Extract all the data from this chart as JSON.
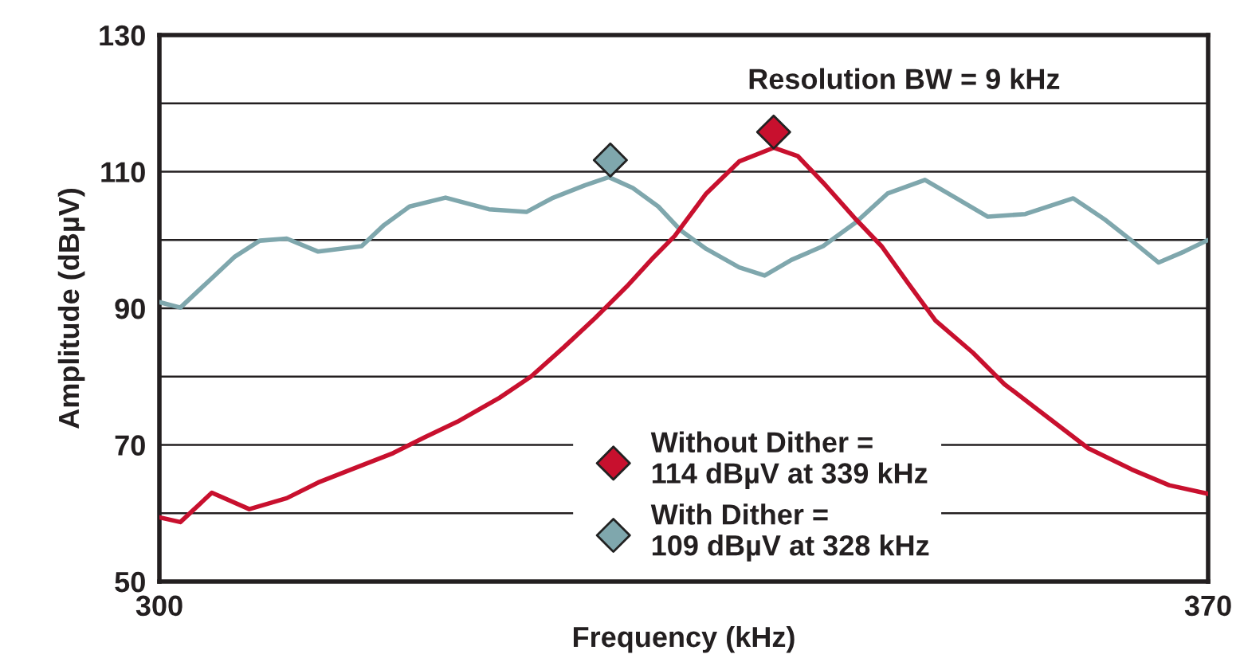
{
  "chart_data": {
    "type": "line",
    "xlabel": "Frequency (kHz)",
    "ylabel": "Amplitude (dBµV)",
    "xlim": [
      300,
      370
    ],
    "xticks": [
      300,
      370
    ],
    "ylim": [
      50,
      130
    ],
    "yticks": [
      50,
      {
        "value": 60,
        "label": null
      },
      70,
      {
        "value": 80,
        "label": null
      },
      90,
      {
        "value": 100,
        "label": null
      },
      110,
      {
        "value": 120,
        "label": null
      },
      130
    ],
    "grid": "y",
    "legend": "bottom",
    "line_style": "solid",
    "marker": "none",
    "annotations": [
      "Resolution BW = 9 kHz"
    ],
    "series": [
      {
        "color": "#7fa7ad",
        "x": [
          300,
          301.4,
          303.5,
          305,
          306.7,
          308.5,
          310.6,
          313.5,
          315,
          316.7,
          319.1,
          322,
          324.5,
          326.2,
          328.4,
          330,
          331.6,
          333.3,
          334.8,
          336.5,
          338.7,
          340.4,
          342.2,
          344.3,
          346.5,
          348.6,
          351.1,
          353.2,
          355.3,
          357.8,
          361,
          363.1,
          364.9,
          366.7,
          368.4,
          369.9
        ],
        "values": [
          90.9,
          90.1,
          94.4,
          97.5,
          99.9,
          100.2,
          98.3,
          99.1,
          102.2,
          104.9,
          106.2,
          104.5,
          104.1,
          106.1,
          108,
          109.2,
          107.6,
          104.9,
          101.4,
          98.7,
          96,
          94.8,
          97.1,
          99.1,
          102.6,
          106.8,
          108.8,
          106.1,
          103.4,
          103.8,
          106.1,
          103,
          99.9,
          96.7,
          98.3,
          99.9
        ]
      },
      {
        "color": "#c8102e",
        "x": [
          300,
          301.4,
          303.5,
          306,
          308.5,
          310.6,
          312.8,
          315.6,
          317.7,
          319.9,
          322.7,
          324.8,
          327,
          329.1,
          331.2,
          333,
          334.4,
          336.5,
          338.7,
          341,
          342.6,
          344.3,
          346.5,
          348.2,
          350,
          351.8,
          354.3,
          356.4,
          359.2,
          362,
          364.9,
          367.4,
          369.9
        ],
        "values": [
          59.4,
          58.7,
          63,
          60.6,
          62.2,
          64.5,
          66.4,
          68.8,
          71.1,
          73.4,
          76.9,
          80,
          84.3,
          88.6,
          93.2,
          97.5,
          100.6,
          106.8,
          111.5,
          113.5,
          112.3,
          108.4,
          103,
          99.1,
          93.6,
          88.2,
          83.5,
          78.9,
          74.2,
          69.5,
          66.4,
          64.1,
          62.9
        ]
      },
      {
        "type": "scatter",
        "marker": "diamond",
        "name": "Without Dither =\n114 dBµV at 339 kHz",
        "color": "#c8102e",
        "x": [
          341
        ],
        "values": [
          115.8
        ]
      },
      {
        "type": "scatter",
        "marker": "diamond",
        "name": "With Dither =\n109 dBµV at 328 kHz",
        "color": "#7fa7ad",
        "x": [
          330.1
        ],
        "values": [
          111.7
        ]
      }
    ]
  }
}
